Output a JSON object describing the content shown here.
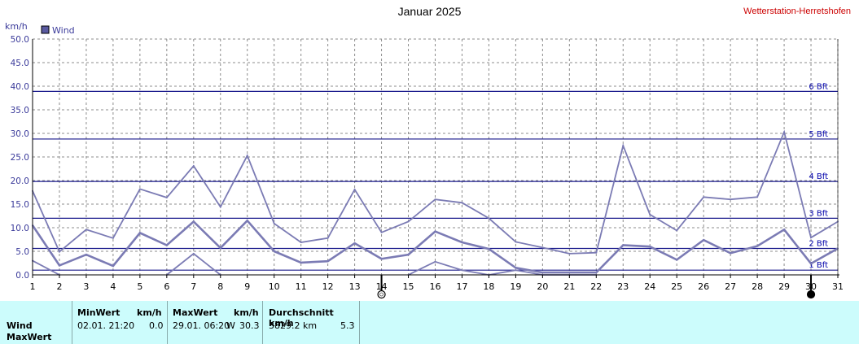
{
  "title": "Januar 2025",
  "station": "Wetterstation-Herretshofen",
  "chart_data": {
    "type": "line",
    "title": "Januar 2025",
    "ylabel": "km/h",
    "ylim": [
      0,
      50
    ],
    "yticks": [
      "0.0",
      "5.0",
      "10.0",
      "15.0",
      "20.0",
      "25.0",
      "30.0",
      "35.0",
      "40.0",
      "45.0",
      "50.0"
    ],
    "x": [
      1,
      2,
      3,
      4,
      5,
      6,
      7,
      8,
      9,
      10,
      11,
      12,
      13,
      14,
      15,
      16,
      17,
      18,
      19,
      20,
      21,
      22,
      23,
      24,
      25,
      26,
      27,
      28,
      29,
      30,
      31
    ],
    "grid": true,
    "legend": [
      "Wind"
    ],
    "series": [
      {
        "name": "Wind",
        "role": "max",
        "color": "#7b7bb4",
        "values": [
          17.8,
          4.9,
          9.6,
          7.8,
          18.2,
          16.4,
          23.1,
          14.4,
          25.3,
          10.9,
          6.9,
          7.8,
          18.1,
          9.0,
          11.3,
          16.0,
          15.3,
          12.0,
          7.0,
          5.8,
          4.5,
          4.7,
          27.4,
          12.8,
          9.4,
          16.5,
          16.0,
          16.5,
          30.3,
          7.9,
          11.3
        ]
      },
      {
        "name": "Wind",
        "role": "avg",
        "color": "#7b7bb4",
        "values": [
          10.5,
          2.0,
          4.3,
          1.9,
          8.9,
          6.3,
          11.3,
          5.7,
          11.5,
          5.0,
          2.6,
          2.9,
          6.7,
          3.4,
          4.3,
          9.2,
          6.9,
          5.5,
          1.5,
          0.5,
          0.5,
          0.5,
          6.3,
          6.0,
          3.2,
          7.4,
          4.6,
          6.1,
          9.6,
          2.4,
          5.6
        ]
      },
      {
        "name": "Wind",
        "role": "min",
        "color": "#7b7bb4",
        "values": [
          3.0,
          0.0,
          null,
          null,
          null,
          0.0,
          4.5,
          0.0,
          null,
          null,
          null,
          null,
          null,
          null,
          0.0,
          2.8,
          1.0,
          0.0,
          1.0,
          0.0,
          0.0,
          0.0,
          null,
          null,
          null,
          null,
          null,
          null,
          null,
          null,
          null
        ]
      }
    ],
    "beaufort": [
      {
        "label": "1 Bft",
        "value": 1.0
      },
      {
        "label": "2 Bft",
        "value": 5.6
      },
      {
        "label": "3 Bft",
        "value": 12.0
      },
      {
        "label": "4 Bft",
        "value": 19.8
      },
      {
        "label": "5 Bft",
        "value": 28.8
      },
      {
        "label": "6 Bft",
        "value": 38.9
      }
    ],
    "moon_phases": [
      {
        "day": 14,
        "phase": "full"
      },
      {
        "day": 30,
        "phase": "new"
      }
    ]
  },
  "stats": {
    "row1": "Wind",
    "row2": "MaxWert",
    "min_header": "MinWert",
    "min_unit": "km/h",
    "min_when": "02.01.  21:20",
    "min_value": "0.0",
    "max_header": "MaxWert",
    "max_unit": "km/h",
    "max_when": "29.01.  06:20",
    "max_dir": "W",
    "max_value": "30.3",
    "avg_header": "Durchschnitt km/h",
    "avg_dist": "3829.2 km",
    "avg_value": "5.3"
  }
}
